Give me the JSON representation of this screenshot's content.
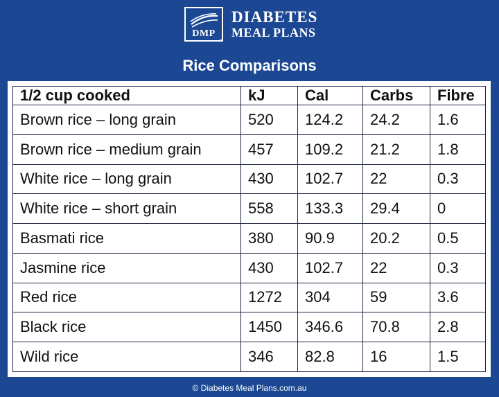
{
  "brand": {
    "abbr": "DMP",
    "line1": "DIABETES",
    "line2": "MEAL PLANS",
    "tm": "™"
  },
  "title": "Rice Comparisons",
  "table": {
    "headers": [
      "1/2 cup cooked",
      "kJ",
      "Cal",
      "Carbs",
      "Fibre"
    ],
    "rows": [
      [
        "Brown rice – long grain",
        "520",
        "124.2",
        "24.2",
        "1.6"
      ],
      [
        "Brown rice – medium grain",
        "457",
        "109.2",
        "21.2",
        "1.8"
      ],
      [
        "White rice – long grain",
        "430",
        "102.7",
        "22",
        "0.3"
      ],
      [
        "White rice – short grain",
        "558",
        "133.3",
        "29.4",
        "0"
      ],
      [
        "Basmati rice",
        "380",
        "90.9",
        "20.2",
        "0.5"
      ],
      [
        "Jasmine rice",
        "430",
        "102.7",
        "22",
        "0.3"
      ],
      [
        "Red rice",
        "1272",
        "304",
        "59",
        "3.6"
      ],
      [
        "Black rice",
        "1450",
        "346.6",
        "70.8",
        "2.8"
      ],
      [
        "Wild rice",
        "346",
        "82.8",
        "16",
        "1.5"
      ]
    ]
  },
  "footer": "© Diabetes Meal Plans.com.au",
  "colors": {
    "background": "#1b4793",
    "table_background": "#ffffff",
    "border": "#1c2440"
  }
}
